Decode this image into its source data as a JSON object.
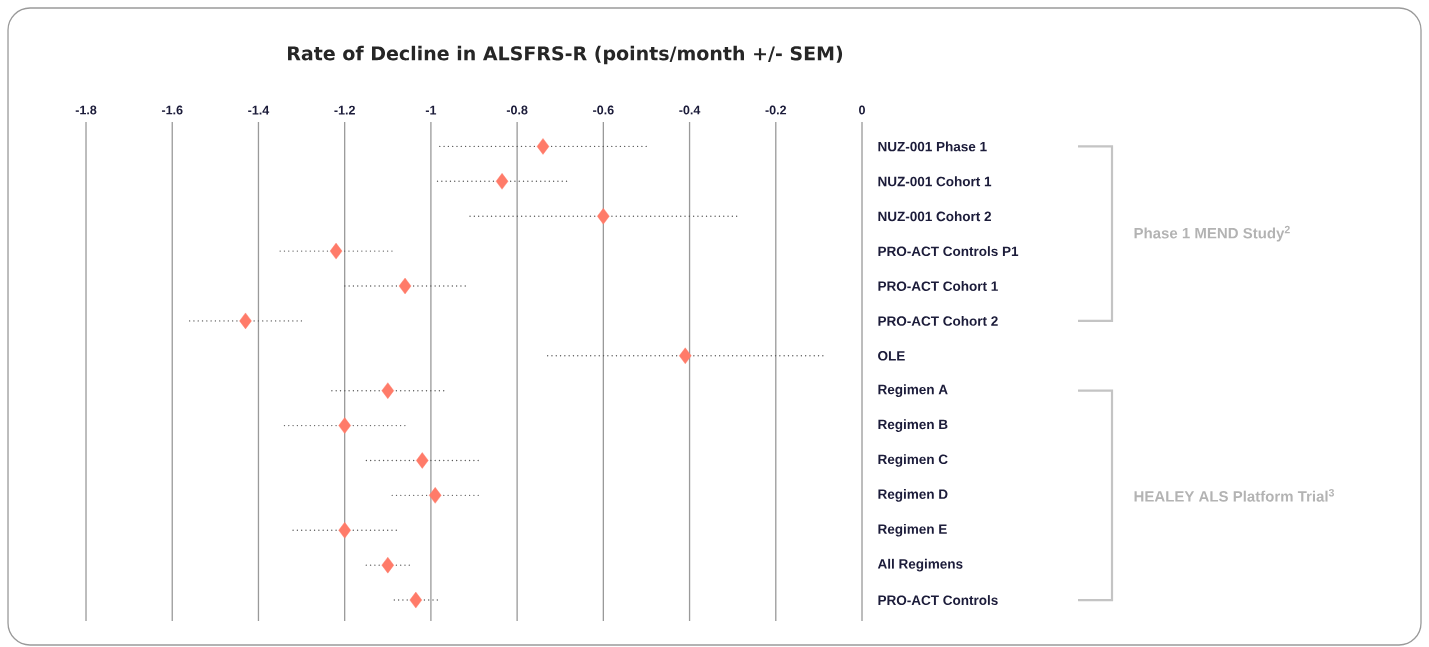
{
  "chart_data": {
    "type": "scatter",
    "orientation": "horizontal",
    "title": "Rate of Decline in ALSFRS-R (points/month +/- SEM)",
    "categories": [
      "NUZ-001 Phase 1",
      "NUZ-001 Cohort 1",
      "NUZ-001 Cohort 2",
      "PRO-ACT Controls P1",
      "PRO-ACT Cohort 1",
      "PRO-ACT Cohort 2",
      "OLE",
      "Regimen A",
      "Regimen B",
      "Regimen C",
      "Regimen D",
      "Regimen E",
      "All Regimens",
      "PRO-ACT Controls"
    ],
    "values": [
      -0.74,
      -0.835,
      -0.6,
      -1.22,
      -1.06,
      -1.43,
      -0.41,
      -1.1,
      -1.2,
      -1.02,
      -0.99,
      -1.2,
      -1.1,
      -1.035
    ],
    "errors": [
      0.24,
      0.155,
      0.31,
      0.13,
      0.145,
      0.135,
      0.32,
      0.13,
      0.14,
      0.13,
      0.105,
      0.125,
      0.055,
      0.055
    ],
    "color": "#ff7b69",
    "marker": "diamond",
    "xlim": [
      -1.8,
      0
    ],
    "xticks": [
      -1.8,
      -1.6,
      -1.4,
      -1.2,
      -1,
      -0.8,
      -0.6,
      -0.4,
      -0.2,
      0
    ],
    "grid": "x",
    "annotations": [
      "Phase 1 MEND Study$^{2}$",
      "HEALEY ALS Platform Trial$^{3}$"
    ]
  }
}
